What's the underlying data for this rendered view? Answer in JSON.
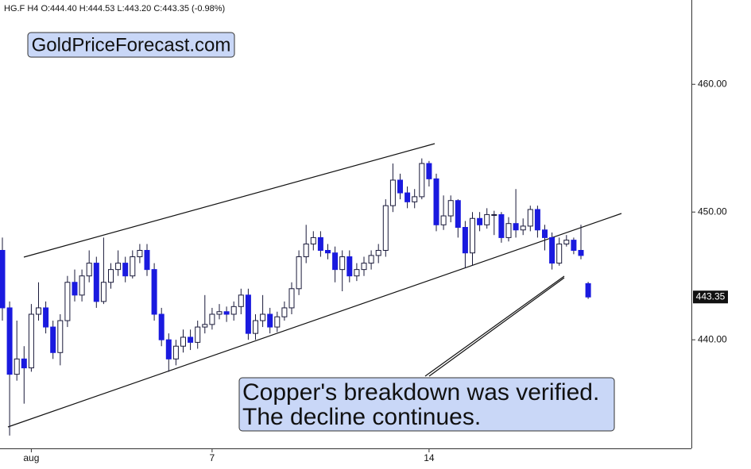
{
  "chart_data": {
    "type": "candlestick",
    "header": "HG.F  H4  O:444.40  H:444.53  L:443.20  C:443.35  (-0.98%)",
    "watermark": "GoldPriceForecast.com",
    "annotation": [
      "Copper's breakdown was verified.",
      "The decline continues."
    ],
    "last_price": 443.35,
    "up_color": "#ffffff",
    "down_color": "#1a1adf",
    "grid": false,
    "ylim": [
      431.5,
      466.6
    ],
    "yticks": [
      {
        "value": 440,
        "label": "440.00"
      },
      {
        "value": 450,
        "label": "450.00"
      },
      {
        "value": 460,
        "label": "460.00"
      }
    ],
    "categories": [
      null,
      null,
      null,
      null,
      "aug",
      null,
      null,
      null,
      null,
      null,
      null,
      null,
      null,
      null,
      null,
      null,
      null,
      null,
      null,
      null,
      null,
      null,
      null,
      null,
      null,
      null,
      null,
      null,
      null,
      "7",
      null,
      null,
      null,
      null,
      null,
      null,
      null,
      null,
      null,
      null,
      null,
      null,
      null,
      null,
      null,
      null,
      null,
      null,
      null,
      null,
      null,
      null,
      null,
      null,
      null,
      null,
      null,
      null,
      null,
      "14",
      null,
      null,
      null,
      null,
      null,
      null,
      null,
      null,
      null,
      null,
      null,
      null,
      null,
      null,
      null,
      null,
      null,
      null,
      null,
      null,
      null,
      null
    ],
    "open": [
      447.0,
      442.5,
      437.3,
      438.5,
      437.8,
      442.0,
      442.5,
      441.0,
      439.0,
      441.5,
      444.5,
      443.5,
      445.0,
      446.0,
      443.0,
      444.5,
      445.5,
      446.0,
      445.0,
      446.5,
      447.0,
      445.5,
      442.0,
      440.0,
      438.5,
      439.5,
      440.2,
      439.8,
      441.0,
      441.2,
      442.0,
      442.2,
      442.0,
      442.6,
      443.5,
      440.5,
      441.5,
      442.0,
      441.0,
      441.8,
      442.5,
      444.0,
      446.5,
      447.5,
      448.0,
      447.0,
      446.8,
      445.5,
      446.5,
      445.0,
      445.5,
      446.0,
      446.6,
      447.0,
      450.5,
      452.5,
      451.5,
      450.8,
      451.2,
      453.8,
      452.6,
      449.0,
      449.7,
      450.9,
      448.8,
      446.8,
      449.5,
      449.0,
      449.8,
      449.8,
      448.0,
      449.1,
      448.6,
      448.9,
      450.2,
      448.6,
      448.0,
      446.0,
      447.5,
      447.8,
      447.0,
      444.4
    ],
    "high": [
      448.0,
      443.0,
      441.5,
      439.5,
      442.8,
      444.5,
      443.0,
      441.5,
      442.0,
      445.0,
      445.5,
      445.5,
      447.0,
      446.5,
      448.0,
      446.0,
      447.0,
      446.5,
      447.0,
      447.5,
      447.5,
      446.0,
      442.5,
      440.5,
      440.0,
      440.8,
      440.8,
      441.5,
      443.5,
      442.5,
      442.8,
      442.6,
      443.0,
      444.0,
      444.0,
      442.0,
      443.5,
      442.5,
      442.2,
      443.0,
      444.5,
      447.0,
      449.0,
      448.5,
      448.5,
      447.5,
      447.3,
      447.0,
      447.0,
      446.0,
      446.5,
      447.0,
      447.5,
      451.0,
      453.8,
      453.0,
      452.0,
      451.8,
      454.2,
      454.0,
      453.0,
      451.3,
      451.3,
      451.0,
      449.3,
      450.0,
      450.0,
      450.3,
      450.1,
      450.0,
      449.6,
      451.8,
      449.5,
      450.5,
      450.5,
      449.0,
      448.4,
      448.0,
      448.2,
      448.0,
      449.0,
      444.53
    ],
    "low": [
      441.5,
      432.5,
      436.8,
      435.0,
      437.5,
      441.5,
      440.5,
      438.5,
      438.0,
      441.0,
      443.0,
      443.0,
      444.5,
      442.5,
      442.8,
      444.0,
      445.0,
      444.5,
      444.8,
      446.0,
      445.0,
      441.5,
      439.5,
      437.5,
      438.0,
      439.0,
      439.2,
      439.3,
      440.5,
      440.8,
      441.6,
      441.4,
      441.5,
      442.0,
      440.0,
      440.0,
      441.0,
      440.5,
      440.6,
      441.5,
      442.0,
      443.5,
      446.0,
      447.0,
      446.5,
      446.3,
      444.5,
      443.8,
      444.5,
      444.6,
      445.0,
      445.5,
      446.0,
      446.5,
      450.0,
      451.0,
      450.3,
      450.3,
      451.0,
      452.0,
      448.5,
      448.6,
      449.2,
      448.0,
      445.6,
      445.8,
      448.5,
      448.7,
      448.2,
      447.6,
      447.7,
      448.0,
      448.2,
      448.5,
      448.0,
      447.0,
      445.5,
      445.8,
      447.3,
      446.7,
      446.3,
      443.2
    ],
    "close": [
      442.5,
      437.3,
      438.5,
      437.8,
      442.0,
      442.5,
      441.0,
      439.0,
      441.5,
      444.5,
      443.5,
      445.0,
      446.0,
      443.0,
      444.5,
      445.5,
      446.0,
      445.0,
      446.5,
      447.0,
      445.5,
      442.0,
      440.0,
      438.5,
      439.5,
      440.2,
      439.8,
      441.0,
      441.2,
      442.0,
      442.2,
      442.0,
      442.6,
      443.5,
      440.5,
      441.5,
      442.0,
      441.0,
      441.8,
      442.5,
      444.0,
      446.5,
      447.5,
      448.0,
      447.0,
      446.8,
      445.5,
      446.5,
      445.0,
      445.5,
      446.0,
      446.6,
      447.0,
      450.5,
      452.5,
      451.5,
      450.8,
      451.2,
      453.8,
      452.6,
      449.0,
      449.7,
      450.9,
      448.8,
      446.8,
      449.5,
      449.0,
      449.8,
      449.8,
      448.0,
      449.1,
      448.6,
      448.9,
      450.2,
      448.6,
      448.0,
      446.0,
      447.5,
      447.8,
      447.0,
      446.6,
      443.35
    ]
  }
}
